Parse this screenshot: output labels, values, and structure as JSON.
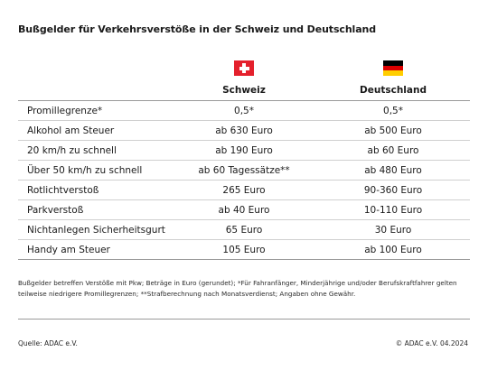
{
  "title": "Bußgelder für Verkehrsverstöße in der Schweiz und Deutschland",
  "columns": {
    "ch": "Schweiz",
    "de": "Deutschland"
  },
  "flags": {
    "ch": {
      "icon": "swiss-flag-icon",
      "red": "#e4202c",
      "white": "#ffffff"
    },
    "de": {
      "icon": "german-flag-icon",
      "black": "#000000",
      "red": "#dd0000",
      "gold": "#ffce00"
    }
  },
  "rows": [
    {
      "label": "Promillegrenze*",
      "ch": "0,5*",
      "de": "0,5*"
    },
    {
      "label": "Alkohol am Steuer",
      "ch": "ab 630 Euro",
      "de": "ab 500 Euro"
    },
    {
      "label": "20 km/h zu schnell",
      "ch": "ab 190 Euro",
      "de": "ab 60 Euro"
    },
    {
      "label": "Über 50 km/h zu schnell",
      "ch": "ab 60 Tagessätze**",
      "de": "ab 480 Euro"
    },
    {
      "label": "Rotlichtverstoß",
      "ch": "265 Euro",
      "de": "90-360 Euro"
    },
    {
      "label": "Parkverstoß",
      "ch": "ab 40 Euro",
      "de": "10-110 Euro"
    },
    {
      "label": "Nichtanlegen Sicherheitsgurt",
      "ch": "65 Euro",
      "de": "30 Euro"
    },
    {
      "label": "Handy am Steuer",
      "ch": "105 Euro",
      "de": "ab 100 Euro"
    }
  ],
  "footnote": "Bußgelder betreffen Verstöße mit Pkw; Beträge in Euro (gerundet); *Für Fahranfänger, Minderjährige und/oder Berufskraftfahrer gelten teilweise niedrigere Promillegrenzen; **Strafberechnung nach Monatsverdienst; Angaben ohne Gewähr.",
  "source": "Quelle: ADAC e.V.",
  "copyright": "© ADAC e.V. 04.2024"
}
